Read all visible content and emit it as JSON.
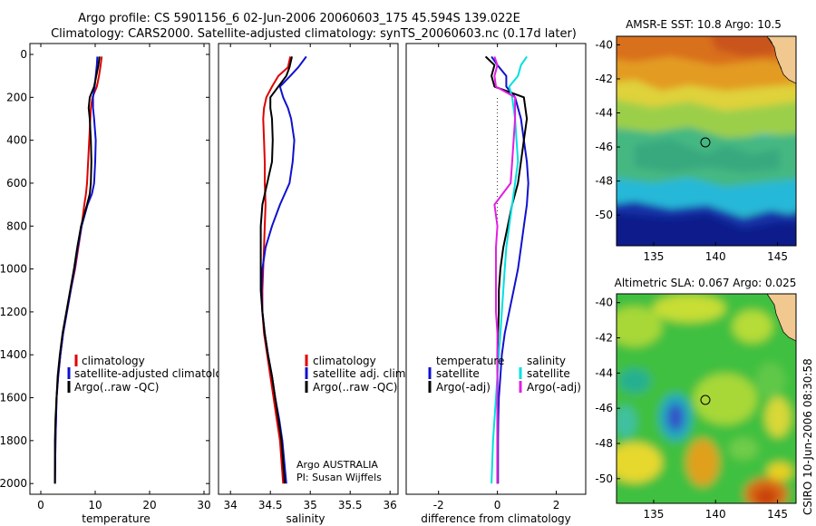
{
  "title": {
    "line1": "Argo profile: CS 5901156_6 02-Jun-2006 20060603_175 45.594S 139.022E",
    "line2": "Climatology: CARS2000. Satellite-adjusted climatology: synTS_20060603.nc (0.17d later)"
  },
  "stamp": "CSIRO 10-Jun-2006 08:30:58",
  "credit": {
    "line1": "Argo AUSTRALIA",
    "line2": "PI: Susan Wijffels"
  },
  "colors": {
    "red": "#e00000",
    "blue": "#1010d0",
    "black": "#000000",
    "cyan": "#00e0e0",
    "magenta": "#e020e0"
  },
  "chart_data": [
    {
      "type": "line",
      "xlabel": "temperature",
      "ylabel": "",
      "xlim": [
        -2,
        31
      ],
      "ylim": [
        0,
        2050
      ],
      "y_reversed": true,
      "xticks": [
        0,
        10,
        20,
        30
      ],
      "yticks": [
        0,
        200,
        400,
        600,
        800,
        1000,
        1200,
        1400,
        1600,
        1800,
        2000
      ],
      "legend": [
        "climatology",
        "satellite-adjusted climatolog",
        "Argo(..raw -QC)"
      ],
      "legend_location": "lower-right",
      "series": [
        {
          "name": "climatology",
          "color": "#e00000",
          "x": [
            11.2,
            11.0,
            10.7,
            10.3,
            9.5,
            9.2,
            9.1,
            8.9,
            8.7,
            8.5,
            8.3,
            8.0,
            7.5,
            6.9,
            6.3,
            5.5,
            4.8,
            4.1,
            3.6,
            3.2,
            2.9,
            2.8,
            2.7,
            2.6
          ],
          "y": [
            10,
            50,
            100,
            150,
            200,
            250,
            300,
            400,
            500,
            600,
            650,
            700,
            800,
            900,
            1000,
            1100,
            1200,
            1300,
            1400,
            1500,
            1600,
            1700,
            1800,
            2000
          ]
        },
        {
          "name": "satellite-adjusted climatolog",
          "color": "#1010d0",
          "x": [
            10.4,
            10.3,
            10.1,
            9.9,
            9.6,
            9.6,
            9.8,
            10.1,
            10.0,
            9.8,
            9.4,
            8.6,
            7.5,
            6.8,
            6.2,
            5.5,
            4.8,
            4.1,
            3.6,
            3.2,
            2.9,
            2.8,
            2.7,
            2.6
          ],
          "y": [
            10,
            50,
            100,
            150,
            200,
            250,
            300,
            400,
            500,
            600,
            650,
            700,
            800,
            900,
            1000,
            1100,
            1200,
            1300,
            1400,
            1500,
            1600,
            1700,
            1800,
            2000
          ]
        },
        {
          "name": "Argo(..raw -QC)",
          "color": "#000000",
          "x": [
            10.8,
            10.6,
            10.2,
            9.8,
            9.0,
            8.8,
            9.0,
            9.2,
            9.3,
            9.2,
            9.0,
            8.5,
            7.4,
            6.7,
            6.1,
            5.4,
            4.7,
            4.0,
            3.5,
            3.1,
            2.9,
            2.7,
            2.6,
            2.6
          ],
          "y": [
            10,
            50,
            100,
            150,
            200,
            250,
            300,
            400,
            500,
            600,
            650,
            700,
            800,
            900,
            1000,
            1100,
            1200,
            1300,
            1400,
            1500,
            1600,
            1700,
            1800,
            2000
          ]
        }
      ]
    },
    {
      "type": "line",
      "xlabel": "salinity",
      "ylabel": "",
      "xlim": [
        33.85,
        36.1
      ],
      "ylim": [
        0,
        2050
      ],
      "y_reversed": true,
      "xticks": [
        34,
        34.5,
        35,
        35.5,
        36
      ],
      "xtick_labels": [
        "34",
        "34.5",
        "35",
        "35.5",
        "36"
      ],
      "legend": [
        "climatology",
        "satellite adj. clim.",
        "Argo(..raw -QC)"
      ],
      "legend_location": "lower-right",
      "series": [
        {
          "name": "climatology",
          "color": "#e00000",
          "x": [
            34.75,
            34.72,
            34.6,
            34.52,
            34.45,
            34.42,
            34.41,
            34.42,
            34.43,
            34.43,
            34.44,
            34.43,
            34.42,
            34.41,
            34.4,
            34.4,
            34.42,
            34.46,
            34.5,
            34.54,
            34.58,
            34.62,
            34.66
          ],
          "y": [
            10,
            60,
            100,
            150,
            200,
            250,
            300,
            400,
            500,
            600,
            700,
            800,
            900,
            1000,
            1100,
            1200,
            1300,
            1400,
            1500,
            1600,
            1700,
            1800,
            2000
          ]
        },
        {
          "name": "satellite adj. clim.",
          "color": "#1010d0",
          "x": [
            34.95,
            34.85,
            34.75,
            34.62,
            34.66,
            34.72,
            34.76,
            34.8,
            34.78,
            34.74,
            34.62,
            34.52,
            34.44,
            34.4,
            34.39,
            34.4,
            34.43,
            34.47,
            34.52,
            34.56,
            34.61,
            34.65,
            34.7
          ],
          "y": [
            10,
            60,
            100,
            150,
            200,
            250,
            300,
            400,
            500,
            600,
            700,
            800,
            900,
            1000,
            1100,
            1200,
            1300,
            1400,
            1500,
            1600,
            1700,
            1800,
            2000
          ]
        },
        {
          "name": "Argo(..raw -QC)",
          "color": "#000000",
          "x": [
            34.77,
            34.74,
            34.7,
            34.6,
            34.5,
            34.5,
            34.52,
            34.53,
            34.52,
            34.46,
            34.4,
            34.38,
            34.38,
            34.38,
            34.38,
            34.4,
            34.43,
            34.47,
            34.52,
            34.56,
            34.6,
            34.64,
            34.68
          ],
          "y": [
            10,
            60,
            100,
            150,
            200,
            250,
            300,
            400,
            500,
            600,
            700,
            800,
            900,
            1000,
            1100,
            1200,
            1300,
            1400,
            1500,
            1600,
            1700,
            1800,
            2000
          ]
        }
      ]
    },
    {
      "type": "line",
      "xlabel": "difference from climatology",
      "ylabel": "",
      "xlim": [
        -3.1,
        3.0
      ],
      "ylim": [
        0,
        2050
      ],
      "y_reversed": true,
      "xticks": [
        -2,
        0,
        2
      ],
      "legend": [
        "temperature",
        "satellite",
        "Argo(-adj)",
        "salinity",
        "satellite",
        "Argo(-adj)"
      ],
      "legend_location": "lower",
      "series": [
        {
          "name": "temperature satellite",
          "color": "#1010d0",
          "x": [
            -0.2,
            0.0,
            0.3,
            0.3,
            0.6,
            0.8,
            0.9,
            1.0,
            1.05,
            1.0,
            0.9,
            0.8,
            0.7,
            0.55,
            0.4,
            0.25,
            0.15,
            0.1,
            0.05,
            0.03,
            0.02,
            0.02
          ],
          "y": [
            10,
            50,
            100,
            150,
            200,
            300,
            400,
            500,
            600,
            700,
            800,
            900,
            1000,
            1100,
            1200,
            1300,
            1400,
            1500,
            1600,
            1700,
            1800,
            2000
          ]
        },
        {
          "name": "temperature Argo(-adj)",
          "color": "#000000",
          "x": [
            -0.4,
            -0.1,
            -0.2,
            -0.1,
            0.9,
            1.0,
            0.9,
            0.8,
            0.7,
            0.5,
            0.35,
            0.2,
            0.1,
            0.05,
            0.05,
            0.02,
            0.0,
            0.0,
            0.0,
            0.0,
            0.0,
            0.0
          ],
          "y": [
            10,
            50,
            100,
            150,
            200,
            300,
            400,
            500,
            600,
            700,
            800,
            900,
            1000,
            1100,
            1200,
            1300,
            1400,
            1500,
            1600,
            1700,
            1800,
            2000
          ]
        },
        {
          "name": "salinity satellite",
          "color": "#00e0e0",
          "x": [
            1.0,
            0.8,
            0.7,
            0.4,
            0.5,
            0.6,
            0.65,
            0.7,
            0.6,
            0.5,
            0.4,
            0.3,
            0.25,
            0.2,
            0.15,
            0.1,
            0.05,
            0.0,
            -0.05,
            -0.1,
            -0.15,
            -0.2
          ],
          "y": [
            10,
            50,
            100,
            150,
            200,
            300,
            400,
            500,
            600,
            700,
            800,
            900,
            1000,
            1100,
            1200,
            1300,
            1400,
            1500,
            1600,
            1700,
            1800,
            2000
          ]
        },
        {
          "name": "salinity Argo(-adj)",
          "color": "#e020e0",
          "x": [
            -0.1,
            0.0,
            -0.1,
            -0.05,
            0.6,
            0.6,
            0.55,
            0.5,
            0.45,
            -0.1,
            0.0,
            -0.05,
            -0.05,
            -0.05,
            -0.05,
            0.0,
            0.0,
            0.0,
            0.0,
            0.0,
            0.0,
            0.0
          ],
          "y": [
            10,
            50,
            100,
            150,
            200,
            300,
            400,
            500,
            600,
            700,
            800,
            900,
            1000,
            1100,
            1200,
            1300,
            1400,
            1500,
            1600,
            1700,
            1800,
            2000
          ]
        }
      ]
    },
    {
      "type": "heatmap",
      "title": "AMSR-E SST: 10.8 Argo: 10.5",
      "xlim": [
        132,
        146.5
      ],
      "ylim": [
        -51.8,
        -39.5
      ],
      "xticks": [
        135,
        140,
        145
      ],
      "yticks": [
        -40,
        -42,
        -44,
        -46,
        -48,
        -50
      ],
      "marker": {
        "lon": 139.022,
        "lat": -45.594
      }
    },
    {
      "type": "heatmap",
      "title": "Altimetric SLA: 0.067 Argo: 0.025",
      "xlim": [
        132,
        146.5
      ],
      "ylim": [
        -51.4,
        -39.5
      ],
      "xticks": [
        135,
        140,
        145
      ],
      "yticks": [
        -40,
        -42,
        -44,
        -46,
        -48,
        -50
      ],
      "marker": {
        "lon": 139.022,
        "lat": -45.594
      }
    }
  ]
}
